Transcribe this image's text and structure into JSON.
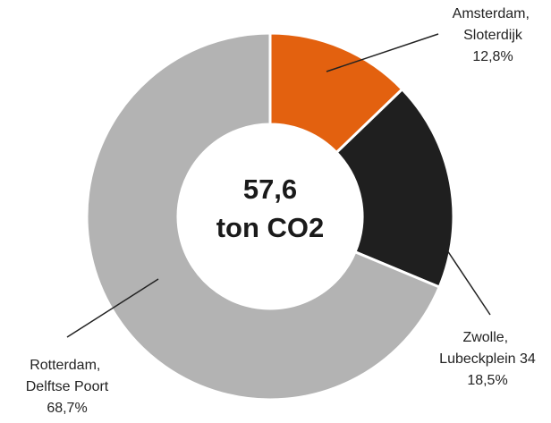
{
  "chart_data": {
    "type": "donut",
    "categories": [
      "Amsterdam, Sloterdijk",
      "Zwolle, Lubeckplein 34",
      "Rotterdam, Delftse Poort"
    ],
    "values": [
      12.8,
      18.5,
      68.7
    ],
    "value_labels": [
      "12,8%",
      "18,5%",
      "68,7%"
    ],
    "colors": [
      "#e3610f",
      "#1f1f1f",
      "#b3b3b3"
    ],
    "total_label": "57,6",
    "unit_label": "ton CO2"
  }
}
